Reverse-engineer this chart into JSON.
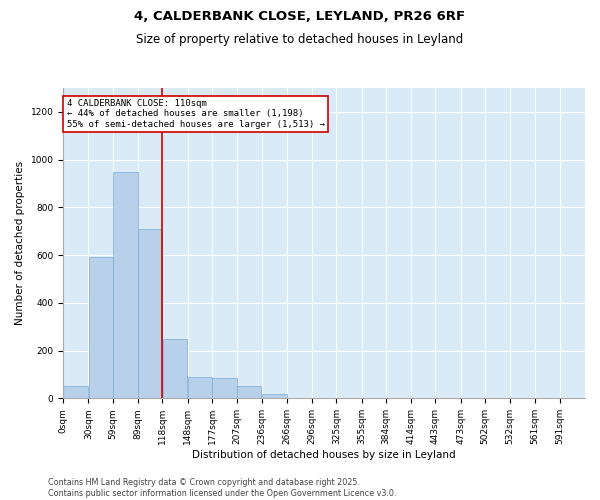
{
  "title": "4, CALDERBANK CLOSE, LEYLAND, PR26 6RF",
  "subtitle": "Size of property relative to detached houses in Leyland",
  "xlabel": "Distribution of detached houses by size in Leyland",
  "ylabel": "Number of detached properties",
  "footer_line1": "Contains HM Land Registry data © Crown copyright and database right 2025.",
  "footer_line2": "Contains public sector information licensed under the Open Government Licence v3.0.",
  "bar_color": "#b8d0ea",
  "bar_edge_color": "#7aadd4",
  "background_color": "#daeaf7",
  "annotation_box_color": "#cc0000",
  "vline_color": "#cc0000",
  "categories": [
    "0sqm",
    "30sqm",
    "59sqm",
    "89sqm",
    "118sqm",
    "148sqm",
    "177sqm",
    "207sqm",
    "236sqm",
    "266sqm",
    "296sqm",
    "325sqm",
    "355sqm",
    "384sqm",
    "414sqm",
    "443sqm",
    "473sqm",
    "502sqm",
    "532sqm",
    "561sqm",
    "591sqm"
  ],
  "values": [
    50,
    590,
    950,
    710,
    250,
    90,
    85,
    50,
    20,
    0,
    0,
    0,
    0,
    0,
    0,
    0,
    0,
    0,
    0,
    0,
    0
  ],
  "vline_x": 118,
  "annotation_text": "4 CALDERBANK CLOSE: 110sqm\n← 44% of detached houses are smaller (1,198)\n55% of semi-detached houses are larger (1,513) →",
  "ylim": [
    0,
    1300
  ],
  "yticks": [
    0,
    200,
    400,
    600,
    800,
    1000,
    1200
  ],
  "bin_edges": [
    0,
    30,
    59,
    89,
    118,
    148,
    177,
    207,
    236,
    266,
    296,
    325,
    355,
    384,
    414,
    443,
    473,
    502,
    532,
    561,
    591,
    621
  ],
  "grid_color": "#ffffff",
  "title_fontsize": 9.5,
  "subtitle_fontsize": 8.5,
  "annot_fontsize": 6.5,
  "axis_label_fontsize": 7.5,
  "tick_fontsize": 6.5,
  "footer_fontsize": 5.8,
  "ylabel_fontsize": 7.5
}
